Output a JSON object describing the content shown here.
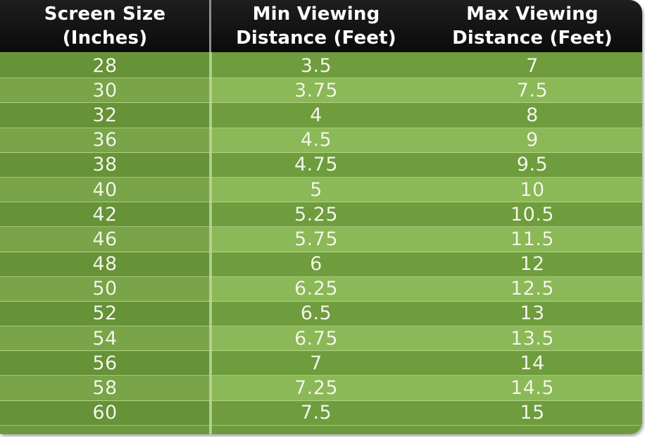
{
  "chart_data": {
    "type": "table",
    "columns": [
      "Screen Size\n(Inches)",
      "Min Viewing\nDistance (Feet)",
      "Max Viewing\nDistance (Feet)"
    ],
    "rows": [
      [
        "28",
        "3.5",
        "7"
      ],
      [
        "30",
        "3.75",
        "7.5"
      ],
      [
        "32",
        "4",
        "8"
      ],
      [
        "36",
        "4.5",
        "9"
      ],
      [
        "38",
        "4.75",
        "9.5"
      ],
      [
        "40",
        "5",
        "10"
      ],
      [
        "42",
        "5.25",
        "10.5"
      ],
      [
        "46",
        "5.75",
        "11.5"
      ],
      [
        "48",
        "6",
        "12"
      ],
      [
        "50",
        "6.25",
        "12.5"
      ],
      [
        "52",
        "6.5",
        "13"
      ],
      [
        "54",
        "6.75",
        "13.5"
      ],
      [
        "56",
        "7",
        "14"
      ],
      [
        "58",
        "7.25",
        "14.5"
      ],
      [
        "60",
        "7.5",
        "15"
      ]
    ]
  },
  "colors": {
    "header_bg": "#111111",
    "row_dark": "#6f9d3e",
    "row_light": "#8cb957",
    "text": "#f4f8e8"
  }
}
